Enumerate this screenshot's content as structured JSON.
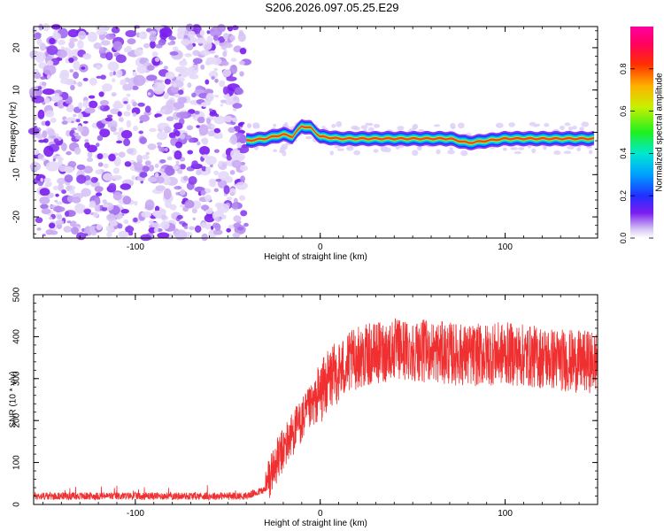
{
  "title": "S206.2026.097.05.25.E29",
  "colors": {
    "snr_line": "#f03030",
    "noise_purple": "#8a2be2",
    "frame": "#000000"
  },
  "chart_data": [
    {
      "type": "heatmap",
      "xlabel": "Height of straight line (km)",
      "ylabel": "Frequency (Hz)",
      "xlim": [
        -155,
        150
      ],
      "ylim": [
        -25,
        25
      ],
      "x_ticks": [
        -100,
        0,
        100
      ],
      "y_ticks": [
        -20,
        -10,
        0,
        10,
        20
      ],
      "colorbar": {
        "label": "Normalized spectral amplitude",
        "range": [
          0.0,
          1.0
        ],
        "ticks": [
          0.0,
          0.2,
          0.4,
          0.6,
          0.8
        ],
        "colormap": "rainbow"
      },
      "ridge_frequency": [
        {
          "x": -40,
          "y": -2.0
        },
        {
          "x": -30,
          "y": -1.5
        },
        {
          "x": -20,
          "y": -0.5
        },
        {
          "x": -15,
          "y": -1.0
        },
        {
          "x": -10,
          "y": 1.5
        },
        {
          "x": -5,
          "y": 1.0
        },
        {
          "x": 0,
          "y": -1.0
        },
        {
          "x": 10,
          "y": -1.5
        },
        {
          "x": 20,
          "y": -1.5
        },
        {
          "x": 40,
          "y": -1.5
        },
        {
          "x": 70,
          "y": -1.5
        },
        {
          "x": 80,
          "y": -2.5
        },
        {
          "x": 90,
          "y": -2.0
        },
        {
          "x": 100,
          "y": -1.5
        },
        {
          "x": 148,
          "y": -1.5
        }
      ]
    },
    {
      "type": "line",
      "xlabel": "Height of straight line (km)",
      "ylabel": "SNR (10 * v/v)",
      "xlim": [
        -155,
        150
      ],
      "ylim": [
        0,
        500
      ],
      "x_ticks": [
        -100,
        0,
        100
      ],
      "y_ticks": [
        0,
        100,
        200,
        300,
        400,
        500
      ],
      "trend": [
        {
          "x": -155,
          "y": 20
        },
        {
          "x": -40,
          "y": 20
        },
        {
          "x": -30,
          "y": 35
        },
        {
          "x": -25,
          "y": 90
        },
        {
          "x": -15,
          "y": 170
        },
        {
          "x": -5,
          "y": 230
        },
        {
          "x": 5,
          "y": 300
        },
        {
          "x": 20,
          "y": 350
        },
        {
          "x": 40,
          "y": 370
        },
        {
          "x": 60,
          "y": 365
        },
        {
          "x": 80,
          "y": 355
        },
        {
          "x": 100,
          "y": 360
        },
        {
          "x": 120,
          "y": 350
        },
        {
          "x": 140,
          "y": 340
        },
        {
          "x": 150,
          "y": 340
        }
      ]
    }
  ]
}
